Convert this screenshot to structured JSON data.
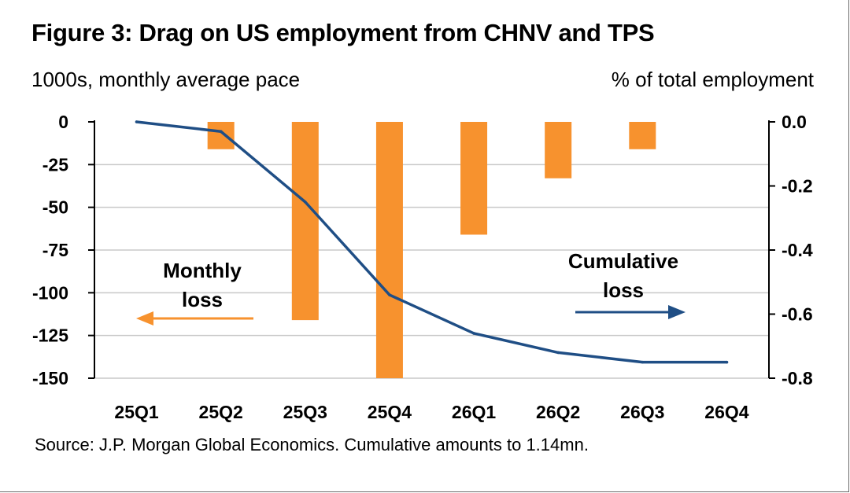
{
  "title": "Figure 3: Drag on US employment from CHNV and TPS",
  "left_unit": "1000s, monthly average pace",
  "right_unit": "% of total employment",
  "source": "Source: J.P. Morgan Global Economics. Cumulative amounts to 1.14mn.",
  "colors": {
    "bar": "#F7922E",
    "line": "#1F4E85",
    "grid": "#C8C8C8",
    "axis": "#000000"
  },
  "annotations": {
    "monthly": [
      "Monthly",
      "loss"
    ],
    "cumulative": [
      "Cumulative",
      "loss"
    ]
  },
  "chart_data": {
    "type": "bar+line",
    "categories": [
      "25Q1",
      "25Q2",
      "25Q3",
      "25Q4",
      "26Q1",
      "26Q2",
      "26Q3",
      "26Q4"
    ],
    "series": [
      {
        "name": "Monthly loss",
        "type": "bar",
        "axis": "left",
        "values": [
          0,
          -16,
          -116,
          -150,
          -66,
          -33,
          -16,
          0
        ]
      },
      {
        "name": "Cumulative loss",
        "type": "line",
        "axis": "right",
        "values": [
          0.0,
          -0.03,
          -0.25,
          -0.54,
          -0.66,
          -0.72,
          -0.75,
          -0.75
        ]
      }
    ],
    "y_left": {
      "min": -150,
      "max": 0,
      "ticks": [
        0,
        -25,
        -50,
        -75,
        -100,
        -125,
        -150
      ]
    },
    "y_right": {
      "min": -0.8,
      "max": 0.0,
      "ticks": [
        "0.0",
        "-0.2",
        "-0.4",
        "-0.6",
        "-0.8"
      ]
    },
    "grid": true
  }
}
